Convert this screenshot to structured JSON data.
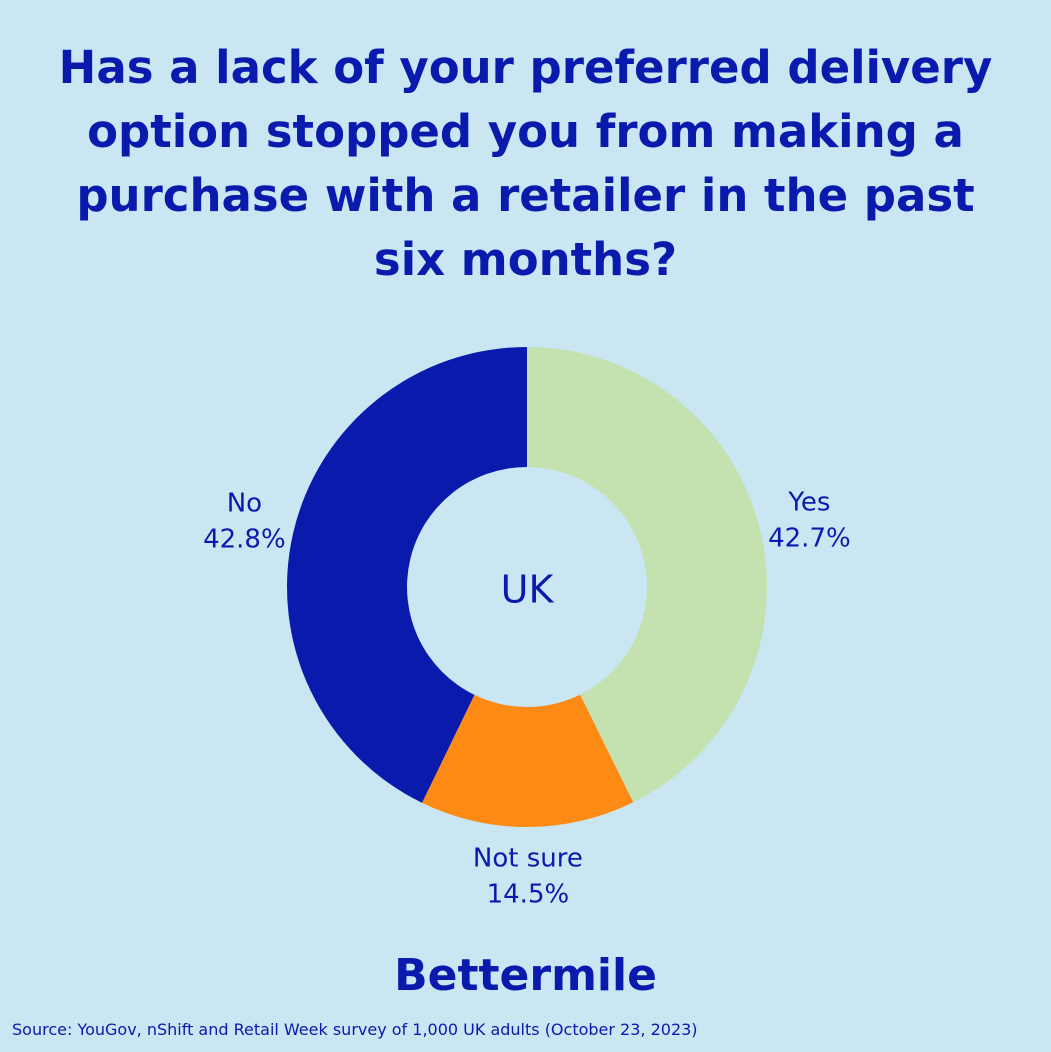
{
  "chart_data": {
    "type": "pie",
    "title": "Has a lack of your preferred delivery option stopped you from making a purchase with a retailer in the past six months?",
    "center_label": "UK",
    "categories": [
      "Yes",
      "Not sure",
      "No"
    ],
    "values": [
      42.7,
      14.5,
      42.8
    ],
    "value_labels": [
      "42.7%",
      "14.5%",
      "42.8%"
    ],
    "colors": [
      "#c3e2b0",
      "#fd8a14",
      "#0a1aad"
    ],
    "brand": "Bettermile",
    "source": "Source: YouGov, nShift and Retail Week survey of 1,000 UK adults (October 23, 2023)"
  }
}
